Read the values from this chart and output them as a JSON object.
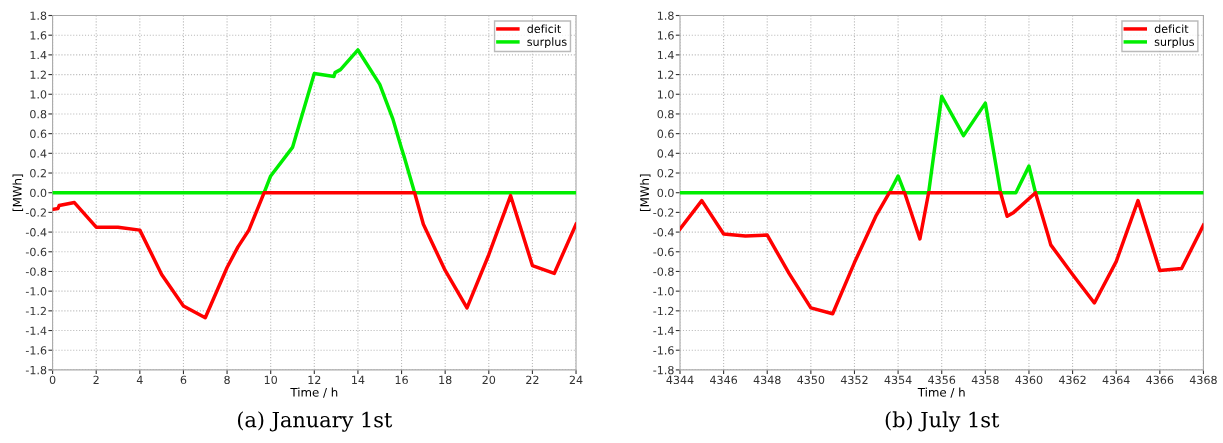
{
  "chart_data": [
    {
      "type": "line",
      "title": "(a) January 1st",
      "xlabel": "Time / h",
      "ylabel": "[MWh]",
      "xlim": [
        0,
        24
      ],
      "xticks": [
        0,
        2,
        4,
        6,
        8,
        10,
        12,
        14,
        16,
        18,
        20,
        22,
        24
      ],
      "ylim": [
        -1.8,
        1.8
      ],
      "yticks": [
        {
          "value": -1.8,
          "label": "-1.8"
        },
        {
          "value": -1.6,
          "label": "-1.6"
        },
        {
          "value": -1.4,
          "label": "-1.4"
        },
        {
          "value": -1.2,
          "label": "-1.2"
        },
        {
          "value": -1.0,
          "label": "-1.0"
        },
        {
          "value": -0.8,
          "label": "-0.8"
        },
        {
          "value": -0.6,
          "label": "-0.6"
        },
        {
          "value": -0.4,
          "label": "-0.4"
        },
        {
          "value": -0.2,
          "label": "-0.2"
        },
        {
          "value": 0,
          "label": "0.0"
        },
        {
          "value": 0.2,
          "label": "0.2"
        },
        {
          "value": 0.4,
          "label": "0.4"
        },
        {
          "value": 0.6,
          "label": "0.6"
        },
        {
          "value": 0.8,
          "label": "0.8"
        },
        {
          "value": 1.0,
          "label": "1.0"
        },
        {
          "value": 1.2,
          "label": "1.2"
        },
        {
          "value": 1.4,
          "label": "1.4"
        },
        {
          "value": 1.6,
          "label": "1.6"
        },
        {
          "value": 1.8,
          "label": "1.8"
        }
      ],
      "grid": true,
      "legend": "top right",
      "marker": "none",
      "line_style": "solid",
      "series": [
        {
          "name": "deficit",
          "color": "#ff0000",
          "x": [
            0,
            0.25,
            0.3,
            1,
            2,
            3,
            4,
            5,
            6,
            7,
            8,
            8.5,
            9,
            9.7,
            16.6,
            17,
            18,
            19,
            20,
            21,
            22,
            23,
            24
          ],
          "values": [
            -0.17,
            -0.16,
            -0.13,
            -0.1,
            -0.35,
            -0.35,
            -0.38,
            -0.83,
            -1.15,
            -1.27,
            -0.76,
            -0.55,
            -0.38,
            0,
            0,
            -0.32,
            -0.79,
            -1.17,
            -0.63,
            -0.03,
            -0.74,
            -0.82,
            -0.32
          ]
        },
        {
          "name": "surplus",
          "color": "#00ee00",
          "x": [
            0,
            9.7,
            10,
            11,
            12,
            12.9,
            12.95,
            13.2,
            14,
            15,
            15.6,
            16,
            16.1,
            16.6,
            24
          ],
          "values": [
            0,
            0,
            0.17,
            0.46,
            1.21,
            1.18,
            1.22,
            1.25,
            1.45,
            1.1,
            0.75,
            0.45,
            0.38,
            0,
            0
          ]
        }
      ]
    },
    {
      "type": "line",
      "title": "(b) July 1st",
      "xlabel": "Time / h",
      "ylabel": "[MWh]",
      "xlim": [
        4344,
        4368
      ],
      "xticks": [
        4344,
        4346,
        4348,
        4350,
        4352,
        4354,
        4356,
        4358,
        4360,
        4362,
        4364,
        4366,
        4368
      ],
      "ylim": [
        -1.8,
        1.8
      ],
      "yticks": [
        {
          "value": -1.8,
          "label": "-1.8"
        },
        {
          "value": -1.6,
          "label": "-1.6"
        },
        {
          "value": -1.4,
          "label": "-1.4"
        },
        {
          "value": -1.2,
          "label": "-1.2"
        },
        {
          "value": -1.0,
          "label": "-1.0"
        },
        {
          "value": -0.8,
          "label": "-0.8"
        },
        {
          "value": -0.6,
          "label": "-0.6"
        },
        {
          "value": -0.4,
          "label": "-0.4"
        },
        {
          "value": -0.2,
          "label": "-0.2"
        },
        {
          "value": 0,
          "label": "0.0"
        },
        {
          "value": 0.2,
          "label": "0.2"
        },
        {
          "value": 0.4,
          "label": "0.4"
        },
        {
          "value": 0.6,
          "label": "0.6"
        },
        {
          "value": 0.8,
          "label": "0.8"
        },
        {
          "value": 1.0,
          "label": "1.0"
        },
        {
          "value": 1.2,
          "label": "1.2"
        },
        {
          "value": 1.4,
          "label": "1.4"
        },
        {
          "value": 1.6,
          "label": "1.6"
        },
        {
          "value": 1.8,
          "label": "1.8"
        }
      ],
      "grid": true,
      "legend": "top right",
      "marker": "none",
      "line_style": "solid",
      "series": [
        {
          "name": "deficit",
          "color": "#ff0000",
          "x": [
            4344,
            4345,
            4346,
            4347,
            4348,
            4349,
            4350,
            4351,
            4352,
            4353,
            4353.6,
            4354.3,
            4355,
            4355.4,
            4358.7,
            4359,
            4359.3,
            4360.3,
            4360.9,
            4361,
            4362,
            4363,
            4364,
            4365,
            4366,
            4367,
            4368
          ],
          "values": [
            -0.37,
            -0.08,
            -0.42,
            -0.44,
            -0.43,
            -0.82,
            -1.17,
            -1.23,
            -0.71,
            -0.23,
            0,
            0,
            -0.47,
            0,
            0,
            -0.24,
            -0.2,
            0,
            -0.45,
            -0.53,
            -0.83,
            -1.12,
            -0.7,
            -0.08,
            -0.79,
            -0.77,
            -0.33
          ]
        },
        {
          "name": "surplus",
          "color": "#00ee00",
          "x": [
            4344,
            4353.6,
            4354,
            4354.3,
            4355.4,
            4356,
            4357,
            4358,
            4358.7,
            4359.4,
            4360,
            4360.3,
            4368
          ],
          "values": [
            0,
            0,
            0.17,
            0,
            0,
            0.98,
            0.58,
            0.91,
            0,
            0,
            0.27,
            0,
            0
          ]
        }
      ]
    }
  ]
}
